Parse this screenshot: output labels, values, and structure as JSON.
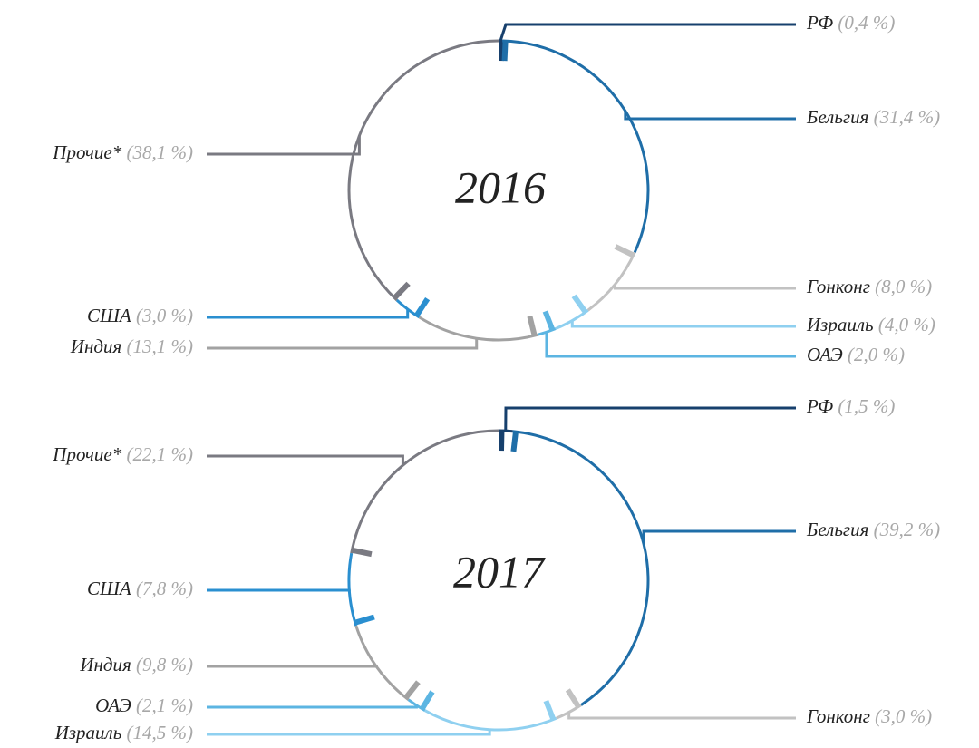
{
  "chart_data": [
    {
      "type": "pie",
      "title": "2016",
      "categories": [
        "РФ",
        "Бельгия",
        "Гонконг",
        "Израиль",
        "ОАЭ",
        "Индия",
        "США",
        "Прочие*"
      ],
      "values": [
        0.4,
        31.4,
        8.0,
        4.0,
        2.0,
        13.1,
        3.0,
        38.1
      ],
      "value_labels": [
        "(0,4 %)",
        "(31,4 %)",
        "(8,0 %)",
        "(4,0 %)",
        "(2,0 %)",
        "(13,1 %)",
        "(3,0 %)",
        "(38,1 %)"
      ],
      "colors": [
        "#17406d",
        "#1f6ea8",
        "#c2c2c2",
        "#8fd0f0",
        "#5cb5e2",
        "#a2a2a2",
        "#2a8fd0",
        "#7a7a82"
      ]
    },
    {
      "type": "pie",
      "title": "2017",
      "categories": [
        "РФ",
        "Бельгия",
        "Гонконг",
        "Израиль",
        "ОАЭ",
        "Индия",
        "США",
        "Прочие*"
      ],
      "values": [
        1.5,
        39.2,
        3.0,
        14.5,
        2.1,
        9.8,
        7.8,
        22.1
      ],
      "value_labels": [
        "(1,5 %)",
        "(39,2 %)",
        "(3,0 %)",
        "(14,5 %)",
        "(2,1 %)",
        "(9,8 %)",
        "(7,8 %)",
        "(22,1 %)"
      ],
      "colors": [
        "#17406d",
        "#1f6ea8",
        "#c2c2c2",
        "#8fd0f0",
        "#5cb5e2",
        "#a2a2a2",
        "#2a8fd0",
        "#7a7a82"
      ]
    }
  ]
}
